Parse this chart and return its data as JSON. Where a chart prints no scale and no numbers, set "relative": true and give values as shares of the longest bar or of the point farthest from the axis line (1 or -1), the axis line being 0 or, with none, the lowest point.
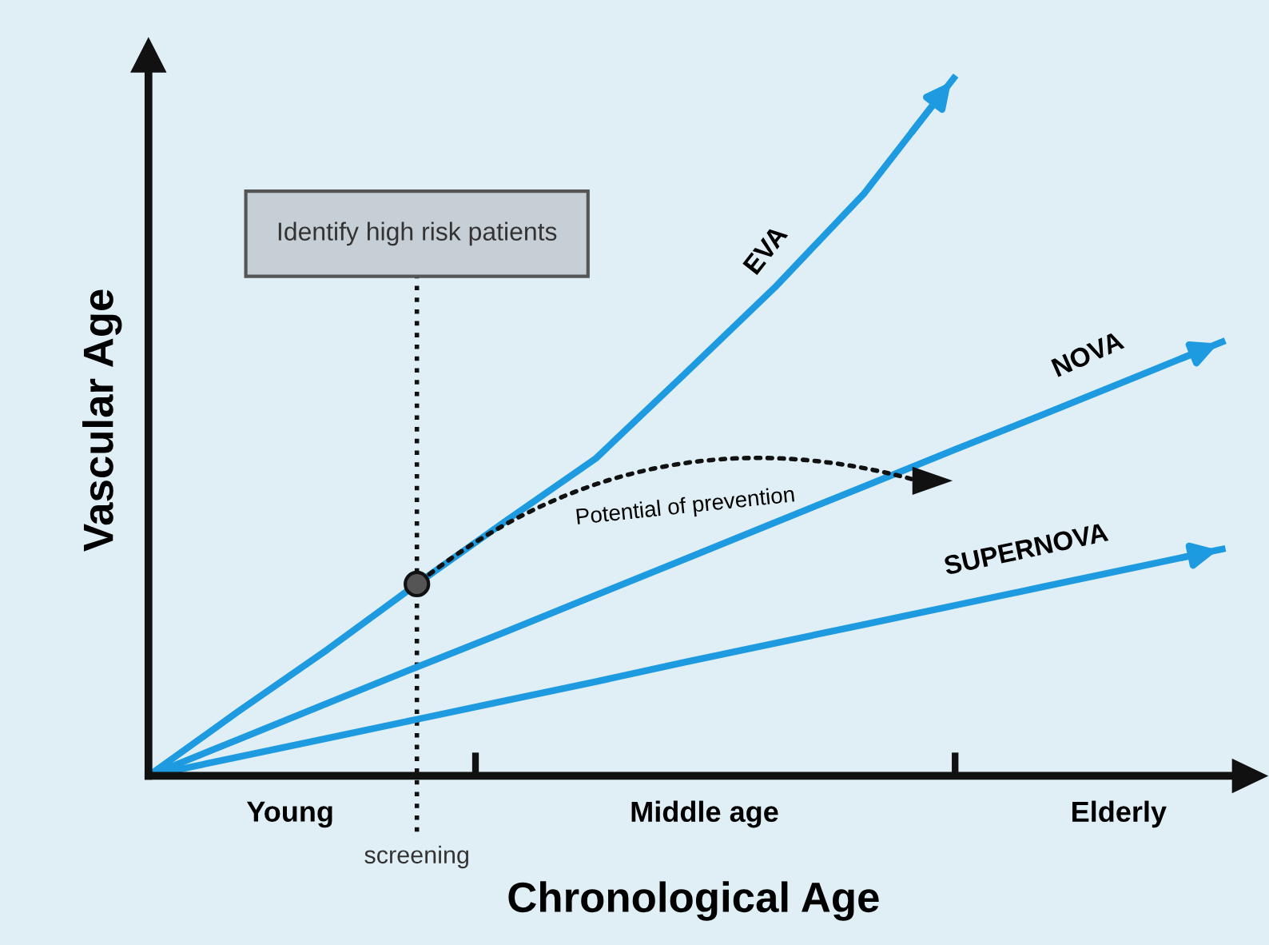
{
  "chart_data": {
    "type": "line",
    "relative": true,
    "xlabel": "Chronological Age",
    "ylabel": "Vascular Age",
    "categories": [
      null,
      null,
      null,
      null,
      null,
      null,
      null,
      null,
      null,
      null,
      null,
      null,
      null
    ],
    "series": [
      {
        "name": "EVA",
        "color": "#1e9be0",
        "values": [
          0,
          0.092,
          0.181,
          0.275,
          0.366,
          0.455,
          0.577,
          0.7,
          0.835,
          1,
          null,
          null,
          null
        ]
      },
      {
        "name": "NOVA",
        "color": "#1e9be0",
        "values": [
          0,
          0.052,
          0.104,
          0.156,
          0.207,
          0.259,
          0.311,
          0.363,
          0.415,
          0.467,
          0.518,
          0.57,
          0.622
        ]
      },
      {
        "name": "SUPERNOVA",
        "color": "#1e9be0",
        "values": [
          0,
          0.027,
          0.054,
          0.081,
          0.108,
          0.135,
          0.163,
          0.19,
          0.217,
          0.244,
          0.271,
          0.298,
          0.325
        ]
      }
    ],
    "annotations": [
      "Identify high risk patients",
      "Potential of prevention",
      "Young",
      "Middle age",
      "Elderly",
      "screening"
    ],
    "marker": "none",
    "line_style": "solid"
  }
}
